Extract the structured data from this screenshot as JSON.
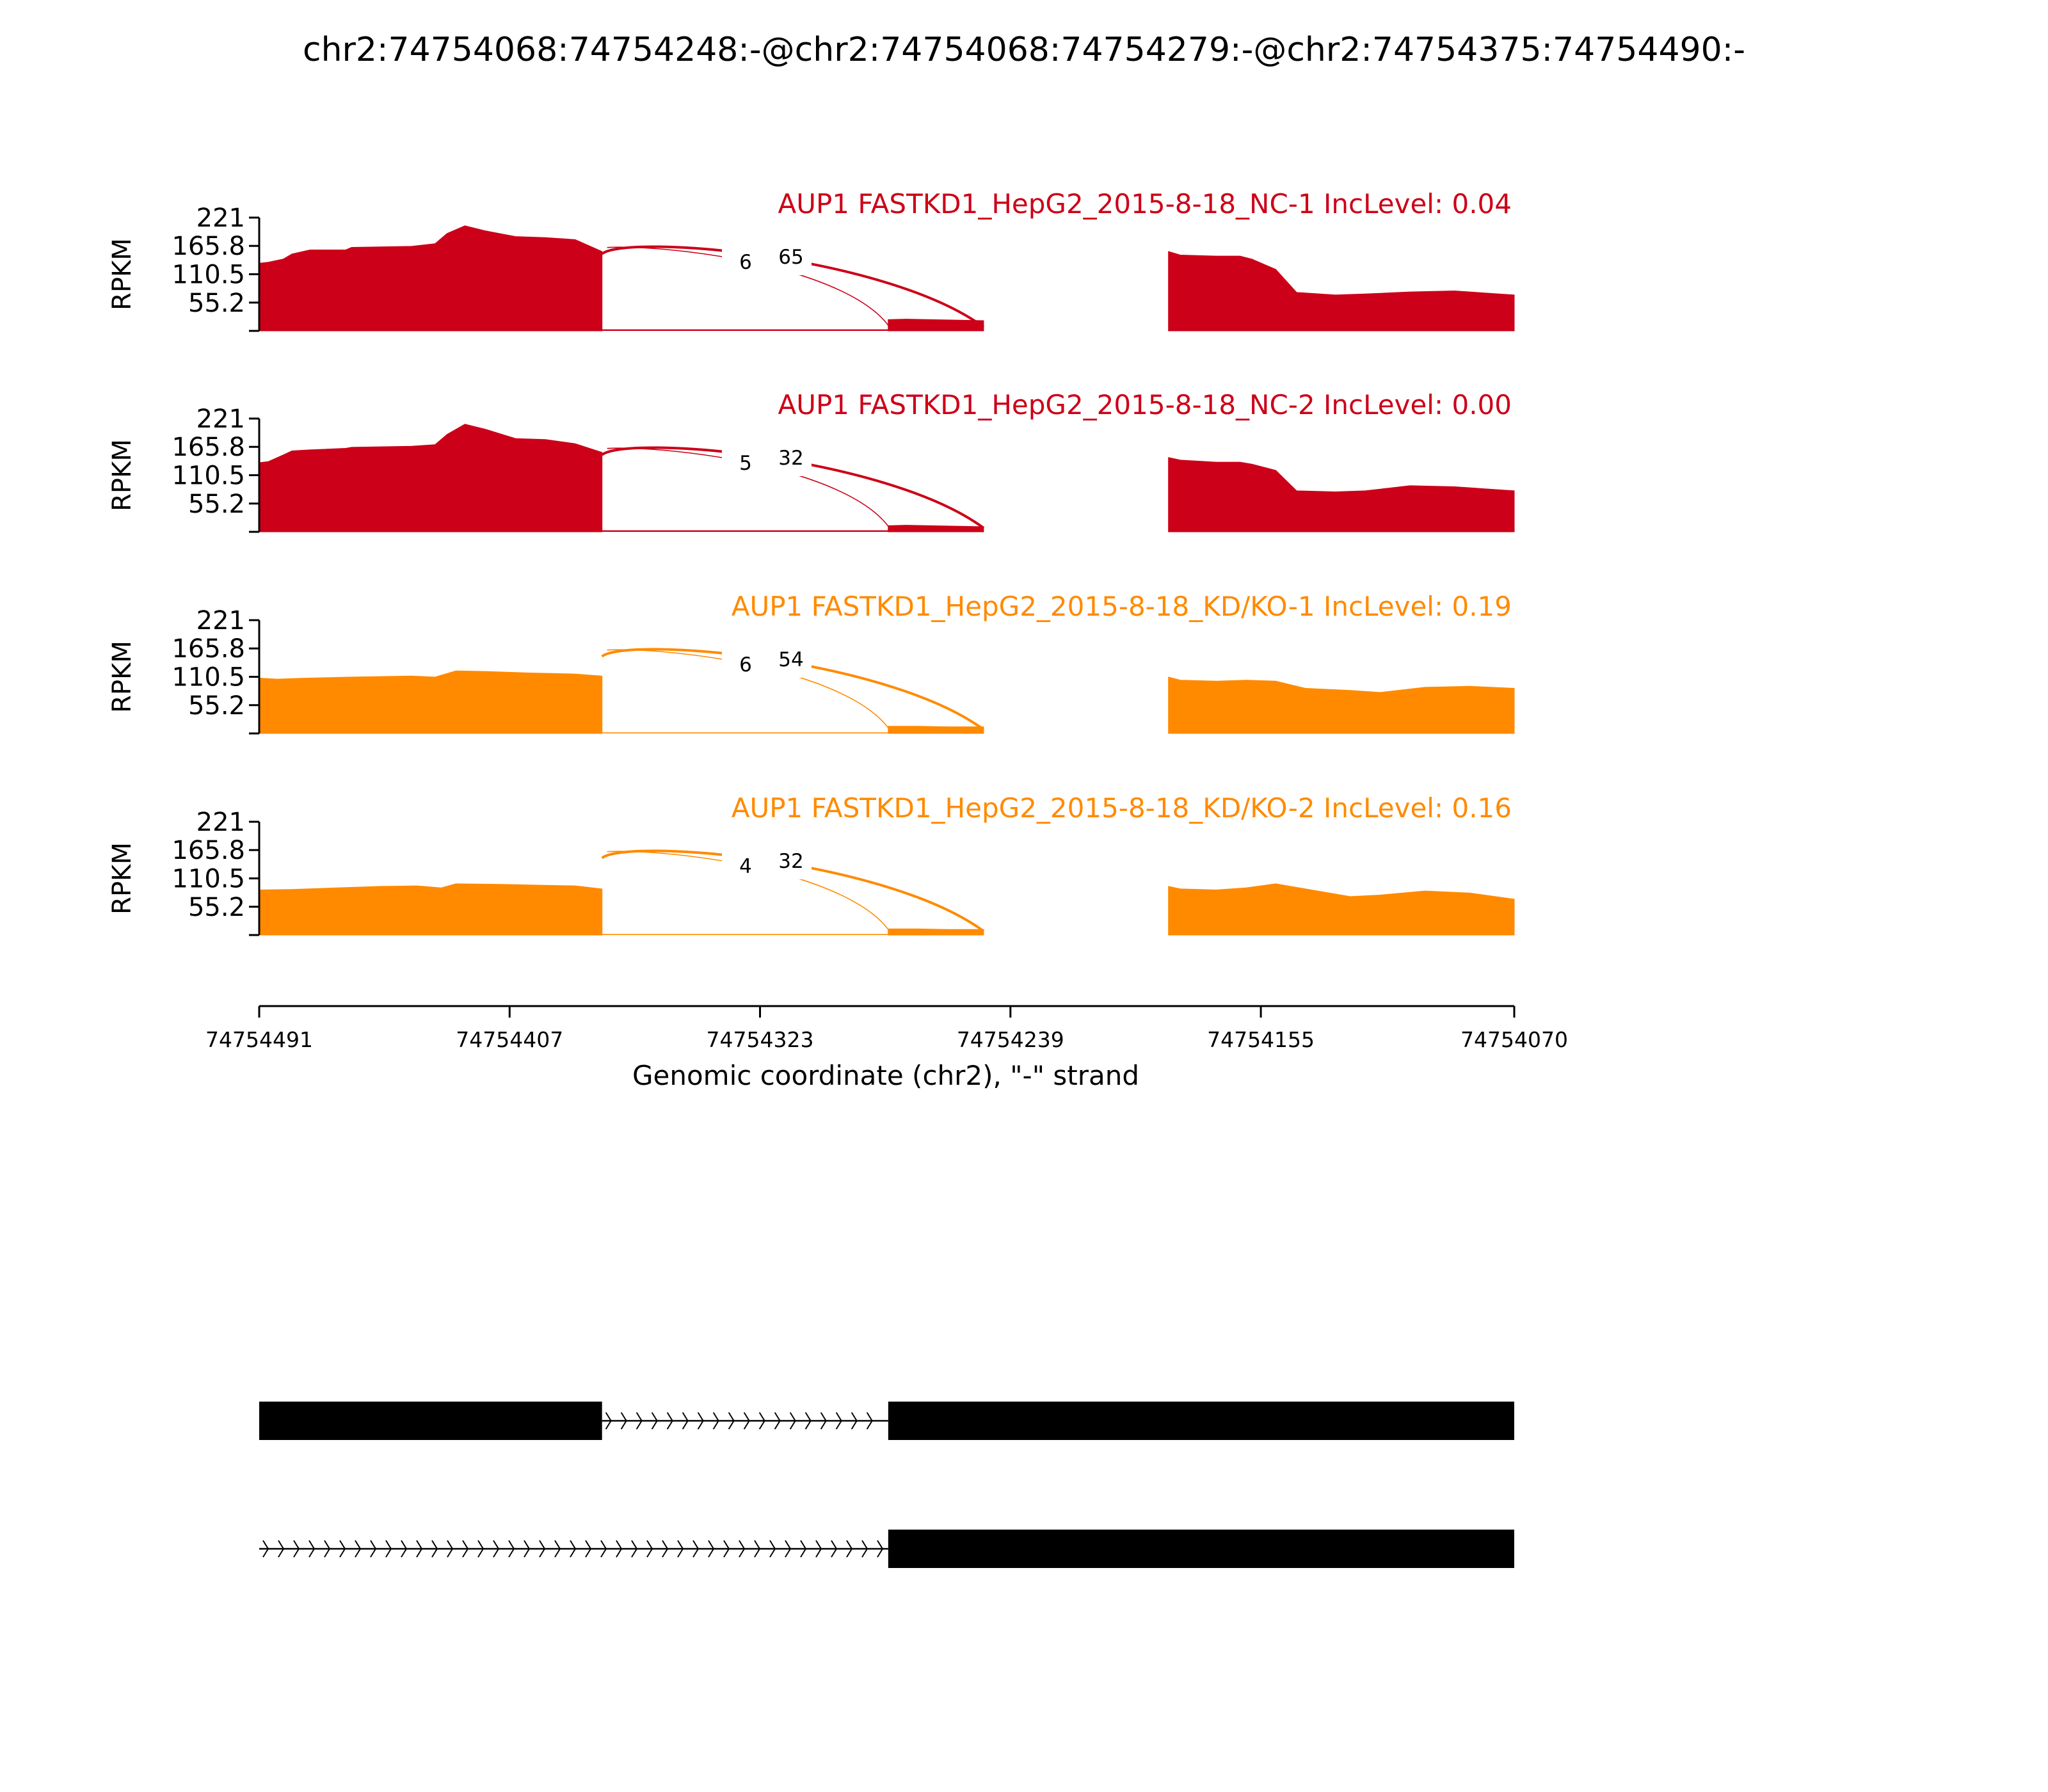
{
  "title": "chr2:74754068:74754248:-@chr2:74754068:74754279:-@chr2:74754375:74754490:-",
  "colors": {
    "nc": "#cc0018",
    "kd": "#ff8a00",
    "axis": "#000000",
    "gene_model": "#000000"
  },
  "chart_data": {
    "type": "area",
    "xlabel": "Genomic coordinate (chr2), \"-\" strand",
    "ylabel": "RPKM",
    "xlim": [
      74754491,
      74754070
    ],
    "x_reversed": true,
    "xticks": [
      "74754491",
      "74754407",
      "74754323",
      "74754239",
      "74754155",
      "74754070"
    ],
    "ylim": [
      0,
      221
    ],
    "yticks": [
      "221",
      "165.8",
      "110.5",
      "55.2"
    ],
    "exons": [
      [
        74754491,
        74754376
      ],
      [
        74754280,
        74754248
      ],
      [
        74754186,
        74754070
      ]
    ],
    "panels": [
      {
        "label": "AUP1 FASTKD1_HepG2_2015-8-18_NC-1 IncLevel: 0.04",
        "color_key": "nc",
        "coverage_segments": [
          {
            "x": [
              74754491,
              74754488,
              74754483,
              74754480,
              74754474,
              74754462,
              74754460,
              74754440,
              74754432,
              74754428,
              74754422,
              74754415,
              74754405,
              74754395,
              74754385,
              74754376
            ],
            "y": [
              132,
              134,
              140,
              150,
              158,
              158,
              163,
              165,
              170,
              190,
              205,
              195,
              184,
              182,
              178,
              155
            ]
          },
          {
            "x": [
              74754280,
              74754274,
              74754266,
              74754256,
              74754248
            ],
            "y": [
              22,
              23,
              22,
              21,
              20
            ]
          },
          {
            "x": [
              74754186,
              74754182,
              74754170,
              74754162,
              74754158,
              74754150,
              74754143,
              74754130,
              74754120,
              74754105,
              74754090,
              74754080,
              74754070
            ],
            "y": [
              155,
              148,
              146,
              146,
              140,
              120,
              75,
              70,
              72,
              76,
              78,
              74,
              70
            ]
          }
        ],
        "intron_coverage": 3,
        "junctions": [
          {
            "from": 74754376,
            "to": 74754248,
            "count": "6",
            "thickness": "thick"
          },
          {
            "from": 74754376,
            "to": 74754279,
            "count": "65",
            "thickness": "thin"
          }
        ]
      },
      {
        "label": "AUP1 FASTKD1_HepG2_2015-8-18_NC-2 IncLevel: 0.00",
        "color_key": "nc",
        "coverage_segments": [
          {
            "x": [
              74754491,
              74754488,
              74754483,
              74754480,
              74754474,
              74754462,
              74754460,
              74754440,
              74754432,
              74754428,
              74754422,
              74754415,
              74754405,
              74754395,
              74754385,
              74754376
            ],
            "y": [
              135,
              137,
              150,
              158,
              160,
              163,
              165,
              167,
              170,
              190,
              210,
              200,
              182,
              180,
              172,
              155
            ]
          },
          {
            "x": [
              74754280,
              74754274,
              74754266,
              74754256,
              74754248
            ],
            "y": [
              12,
              13,
              12,
              11,
              10
            ]
          },
          {
            "x": [
              74754186,
              74754182,
              74754170,
              74754162,
              74754158,
              74754150,
              74754143,
              74754130,
              74754120,
              74754105,
              74754090,
              74754080,
              74754070
            ],
            "y": [
              145,
              140,
              136,
              136,
              132,
              120,
              80,
              78,
              80,
              90,
              88,
              84,
              80
            ]
          }
        ],
        "intron_coverage": 3,
        "junctions": [
          {
            "from": 74754376,
            "to": 74754248,
            "count": "5",
            "thickness": "thick"
          },
          {
            "from": 74754376,
            "to": 74754279,
            "count": "32",
            "thickness": "thin"
          }
        ]
      },
      {
        "label": "AUP1 FASTKD1_HepG2_2015-8-18_KD/KO-1 IncLevel: 0.19",
        "color_key": "kd",
        "coverage_segments": [
          {
            "x": [
              74754491,
              74754485,
              74754475,
              74754460,
              74754440,
              74754432,
              74754425,
              74754415,
              74754400,
              74754385,
              74754376
            ],
            "y": [
              108,
              106,
              108,
              110,
              112,
              110,
              122,
              121,
              118,
              116,
              112
            ]
          },
          {
            "x": [
              74754280,
              74754270,
              74754260,
              74754248
            ],
            "y": [
              14,
              14,
              13,
              13
            ]
          },
          {
            "x": [
              74754186,
              74754182,
              74754170,
              74754160,
              74754150,
              74754140,
              74754125,
              74754115,
              74754100,
              74754085,
              74754070
            ],
            "y": [
              110,
              104,
              102,
              104,
              102,
              88,
              84,
              80,
              90,
              92,
              88
            ]
          }
        ],
        "intron_coverage": 2,
        "junctions": [
          {
            "from": 74754376,
            "to": 74754248,
            "count": "6",
            "thickness": "thick"
          },
          {
            "from": 74754376,
            "to": 74754279,
            "count": "54",
            "thickness": "thin"
          }
        ]
      },
      {
        "label": "AUP1 FASTKD1_HepG2_2015-8-18_KD/KO-2 IncLevel: 0.16",
        "color_key": "kd",
        "coverage_segments": [
          {
            "x": [
              74754491,
              74754480,
              74754465,
              74754450,
              74754438,
              74754430,
              74754425,
              74754410,
              74754395,
              74754385,
              74754376
            ],
            "y": [
              88,
              89,
              92,
              95,
              96,
              92,
              100,
              99,
              97,
              96,
              90
            ]
          },
          {
            "x": [
              74754280,
              74754270,
              74754260,
              74754248
            ],
            "y": [
              12,
              12,
              11,
              11
            ]
          },
          {
            "x": [
              74754186,
              74754182,
              74754170,
              74754160,
              74754150,
              74754140,
              74754125,
              74754115,
              74754100,
              74754085,
              74754070
            ],
            "y": [
              95,
              90,
              88,
              92,
              100,
              90,
              75,
              78,
              86,
              82,
              70
            ]
          }
        ],
        "intron_coverage": 2,
        "junctions": [
          {
            "from": 74754376,
            "to": 74754248,
            "count": "4",
            "thickness": "thick"
          },
          {
            "from": 74754376,
            "to": 74754279,
            "count": "32",
            "thickness": "thin"
          }
        ]
      }
    ],
    "gene_model": [
      {
        "exons": [
          [
            74754491,
            74754376
          ],
          [
            74754280,
            74754070
          ]
        ],
        "intron": [
          74754376,
          74754280
        ]
      },
      {
        "exons": [
          [
            74754280,
            74754070
          ]
        ],
        "intron": [
          74754491,
          74754280
        ]
      }
    ]
  }
}
